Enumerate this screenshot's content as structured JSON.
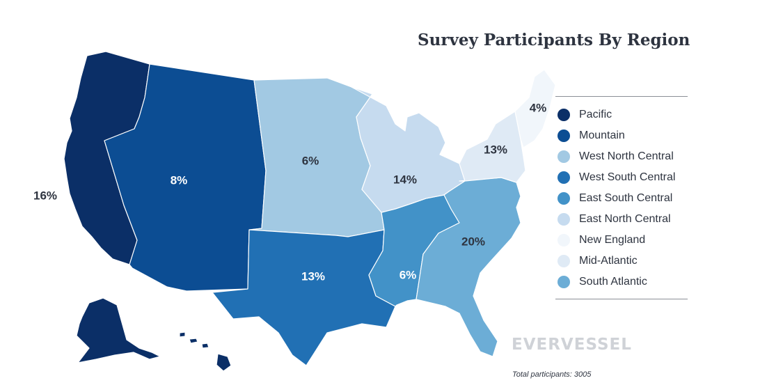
{
  "title": "Survey Participants By Region",
  "total_participants": "Total participants: 3005",
  "logo_text": "EVERVESSEL",
  "colors": {
    "pacific": "#0b2f67",
    "mountain": "#0c4d93",
    "west_north_central": "#a2c9e3",
    "west_south_central": "#2170b4",
    "east_south_central": "#4292c8",
    "east_north_central": "#c6dbef",
    "new_england": "#f1f6fb",
    "mid_atlantic": "#dfeaf5",
    "south_atlantic": "#6cadd6",
    "label_dark": "#2e3440",
    "label_light": "#ffffff",
    "logo": "#cfd2d7"
  },
  "regions": [
    {
      "id": "pacific",
      "name": "Pacific",
      "share_label": "16%",
      "share": 16
    },
    {
      "id": "mountain",
      "name": "Mountain",
      "share_label": "8%",
      "share": 8
    },
    {
      "id": "west_north_central",
      "name": "West North Central",
      "share_label": "6%",
      "share": 6
    },
    {
      "id": "west_south_central",
      "name": "West South Central",
      "share_label": "13%",
      "share": 13
    },
    {
      "id": "east_south_central",
      "name": "East South Central",
      "share_label": "6%",
      "share": 6
    },
    {
      "id": "east_north_central",
      "name": "East North Central",
      "share_label": "14%",
      "share": 14
    },
    {
      "id": "new_england",
      "name": "New England",
      "share_label": "4%",
      "share": 4
    },
    {
      "id": "mid_atlantic",
      "name": "Mid-Atlantic",
      "share_label": "13%",
      "share": 13
    },
    {
      "id": "south_atlantic",
      "name": "South Atlantic",
      "share_label": "20%",
      "share": 20
    }
  ]
}
